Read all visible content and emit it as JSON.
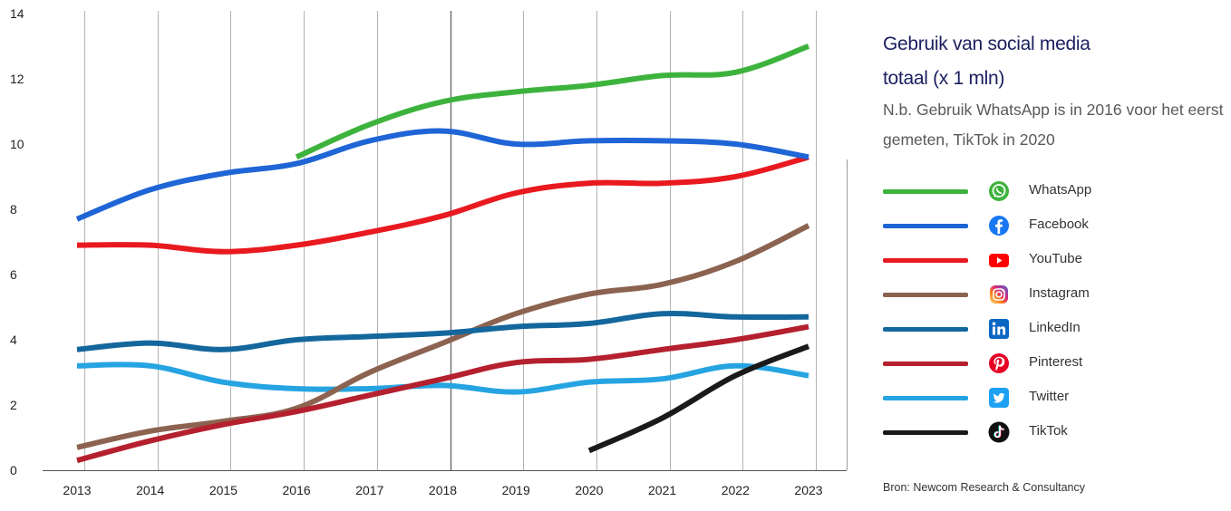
{
  "chart_data": {
    "type": "line",
    "title": "Gebruik van social media",
    "title_line2": "totaal (x 1 mln)",
    "subtitle_line1": "N.b. Gebruik WhatsApp is in 2016 voor het eerst",
    "subtitle_line2": "gemeten, TikTok in 2020",
    "source": "Bron: Newcom Research & Consultancy",
    "xlabel": "",
    "ylabel": "",
    "x": [
      2013,
      2014,
      2015,
      2016,
      2017,
      2018,
      2019,
      2020,
      2021,
      2022,
      2023
    ],
    "x_tick_labels": [
      "2013",
      "2014",
      "2015",
      "2016",
      "2017",
      "2018",
      "2019",
      "2020",
      "2021",
      "2022",
      "2023"
    ],
    "ylim": [
      0,
      14
    ],
    "y_ticks": [
      0,
      2,
      4,
      6,
      8,
      10,
      12,
      14
    ],
    "y_tick_labels": [
      "0",
      "2",
      "4",
      "6",
      "8",
      "10",
      "12",
      "14"
    ],
    "grid": "vertical",
    "legend_position": "right",
    "series": [
      {
        "name": "WhatsApp",
        "color": "#3db33d",
        "icon": "whatsapp-icon",
        "x": [
          2016,
          2017,
          2018,
          2019,
          2020,
          2021,
          2022,
          2023
        ],
        "values": [
          9.6,
          10.6,
          11.3,
          11.6,
          11.8,
          12.1,
          12.2,
          13.0
        ]
      },
      {
        "name": "Facebook",
        "color": "#1f65d6",
        "icon": "facebook-icon",
        "x": [
          2013,
          2014,
          2015,
          2016,
          2017,
          2018,
          2019,
          2020,
          2021,
          2022,
          2023
        ],
        "values": [
          7.7,
          8.6,
          9.1,
          9.4,
          10.1,
          10.4,
          10.0,
          10.1,
          10.1,
          10.0,
          9.6
        ]
      },
      {
        "name": "YouTube",
        "color": "#e8191f",
        "icon": "youtube-icon",
        "x": [
          2013,
          2014,
          2015,
          2016,
          2017,
          2018,
          2019,
          2020,
          2021,
          2022,
          2023
        ],
        "values": [
          6.9,
          6.9,
          6.7,
          6.9,
          7.3,
          7.8,
          8.5,
          8.8,
          8.8,
          9.0,
          9.6
        ]
      },
      {
        "name": "Instagram",
        "color": "#8b6350",
        "icon": "instagram-icon",
        "x": [
          2013,
          2014,
          2015,
          2016,
          2017,
          2018,
          2019,
          2020,
          2021,
          2022,
          2023
        ],
        "values": [
          0.7,
          1.2,
          1.5,
          1.9,
          3.0,
          3.9,
          4.8,
          5.4,
          5.7,
          6.4,
          7.5
        ]
      },
      {
        "name": "LinkedIn",
        "color": "#14679c",
        "icon": "linkedin-icon",
        "x": [
          2013,
          2014,
          2015,
          2016,
          2017,
          2018,
          2019,
          2020,
          2021,
          2022,
          2023
        ],
        "values": [
          3.7,
          3.9,
          3.7,
          4.0,
          4.1,
          4.2,
          4.4,
          4.5,
          4.8,
          4.7,
          4.7
        ]
      },
      {
        "name": "Pinterest",
        "color": "#b5202e",
        "icon": "pinterest-icon",
        "x": [
          2013,
          2014,
          2015,
          2016,
          2017,
          2018,
          2019,
          2020,
          2021,
          2022,
          2023
        ],
        "values": [
          0.3,
          0.9,
          1.4,
          1.8,
          2.3,
          2.8,
          3.3,
          3.4,
          3.7,
          4.0,
          4.4
        ]
      },
      {
        "name": "Twitter",
        "color": "#26a4e2",
        "icon": "twitter-icon",
        "x": [
          2013,
          2014,
          2015,
          2016,
          2017,
          2018,
          2019,
          2020,
          2021,
          2022,
          2023
        ],
        "values": [
          3.2,
          3.2,
          2.7,
          2.5,
          2.5,
          2.6,
          2.4,
          2.7,
          2.8,
          3.2,
          2.9
        ]
      },
      {
        "name": "TikTok",
        "color": "#1a1a1a",
        "icon": "tiktok-icon",
        "x": [
          2020,
          2021,
          2022,
          2023
        ],
        "values": [
          0.6,
          1.6,
          2.9,
          3.8
        ]
      }
    ]
  }
}
